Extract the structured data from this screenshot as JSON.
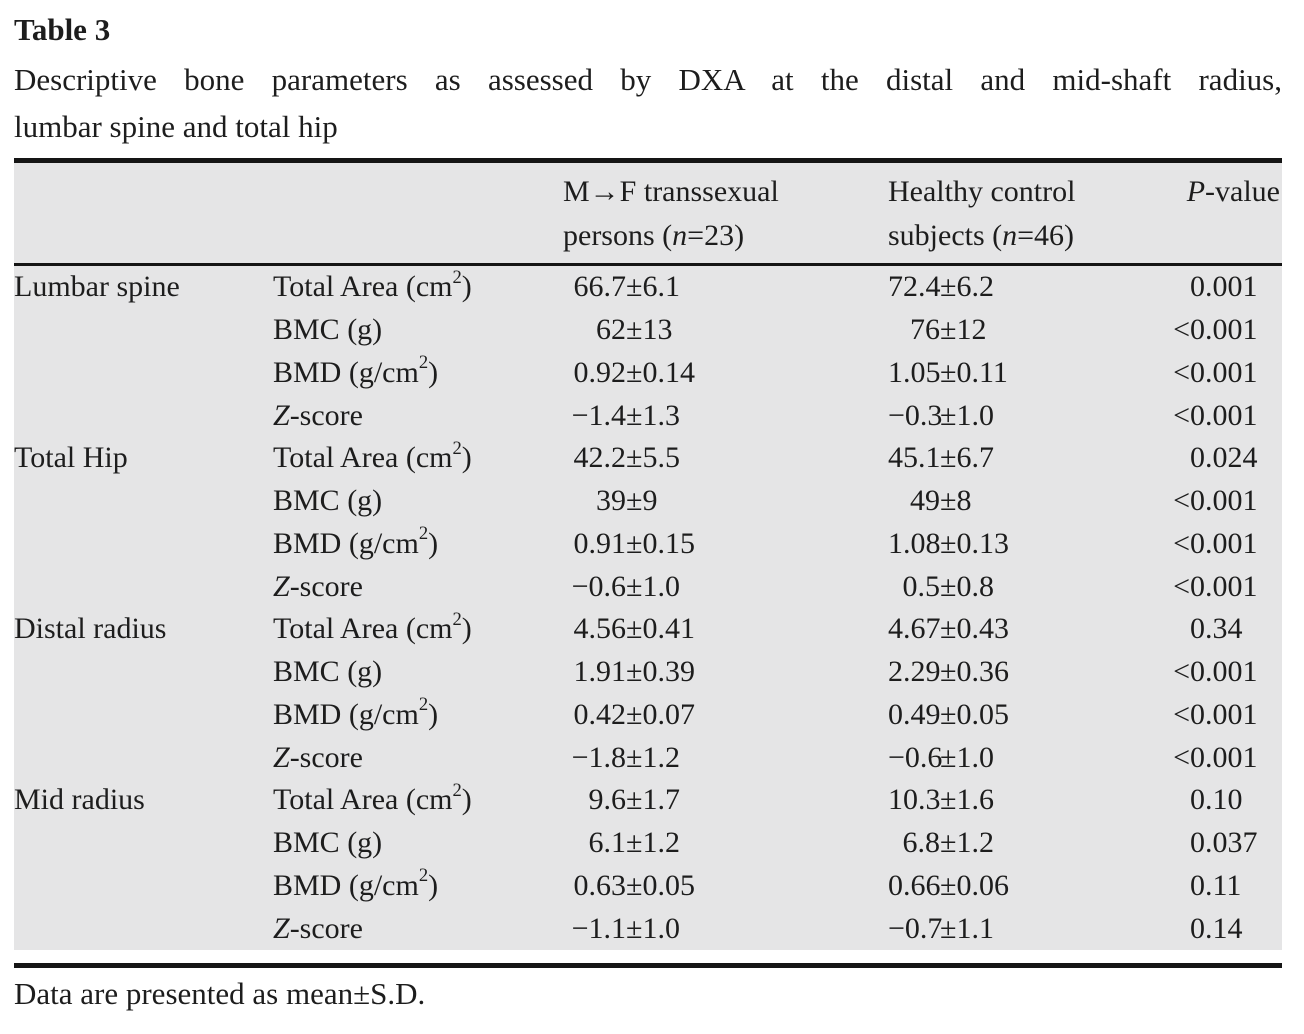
{
  "title": "Table 3",
  "caption_lines": [
    "Descriptive bone parameters as assessed by DXA at the distal and mid-shaft radius,",
    "lumbar spine and total hip"
  ],
  "footnote": "Data are presented as mean±S.D.",
  "colors": {
    "table_background": "#e5e5e6",
    "rule": "#151515",
    "text": "#1d1d1d"
  },
  "header": {
    "col3": {
      "line1": "M→F transsexual",
      "line2": [
        {
          "t": "persons ("
        },
        {
          "t": "n",
          "s": "i"
        },
        {
          "t": "=23)"
        }
      ]
    },
    "col4": {
      "line1": "Healthy control",
      "line2": [
        {
          "t": "subjects ("
        },
        {
          "t": "n",
          "s": "i"
        },
        {
          "t": "=46)"
        }
      ]
    },
    "col5": [
      {
        "t": "P",
        "s": "i"
      },
      {
        "t": "-value"
      }
    ]
  },
  "rows": [
    {
      "group": "Lumbar spine",
      "param": [
        {
          "t": "Total Area (cm"
        },
        {
          "t": "2",
          "s": "sup"
        },
        {
          "t": ")"
        }
      ],
      "v1": {
        "m": "66.7",
        "sd": "6.1"
      },
      "v2": {
        "m": "72.4",
        "sd": "6.2"
      },
      "p": {
        "pre": "",
        "val": "0.001"
      }
    },
    {
      "group": "",
      "param": [
        {
          "t": "BMC (g)"
        }
      ],
      "v1": {
        "m": "62",
        "sd": "13"
      },
      "v2": {
        "m": "76",
        "sd": "12"
      },
      "p": {
        "pre": "<",
        "val": "0.001"
      }
    },
    {
      "group": "",
      "param": [
        {
          "t": "BMD (g/cm"
        },
        {
          "t": "2",
          "s": "sup"
        },
        {
          "t": ")"
        }
      ],
      "v1": {
        "m": "0.92",
        "sd": "0.14"
      },
      "v2": {
        "m": "1.05",
        "sd": "0.11"
      },
      "p": {
        "pre": "<",
        "val": "0.001"
      }
    },
    {
      "group": "",
      "param": [
        {
          "t": "Z",
          "s": "i"
        },
        {
          "t": "-score"
        }
      ],
      "v1": {
        "m": "−1.4",
        "sd": "1.3"
      },
      "v2": {
        "m": "−0.3",
        "sd": "1.0"
      },
      "p": {
        "pre": "<",
        "val": "0.001"
      }
    },
    {
      "group": "Total Hip",
      "param": [
        {
          "t": "Total Area (cm"
        },
        {
          "t": "2",
          "s": "sup"
        },
        {
          "t": ")"
        }
      ],
      "v1": {
        "m": "42.2",
        "sd": "5.5"
      },
      "v2": {
        "m": "45.1",
        "sd": "6.7"
      },
      "p": {
        "pre": "",
        "val": "0.024"
      }
    },
    {
      "group": "",
      "param": [
        {
          "t": "BMC (g)"
        }
      ],
      "v1": {
        "m": "39",
        "sd": "9"
      },
      "v2": {
        "m": "49",
        "sd": "8"
      },
      "p": {
        "pre": "<",
        "val": "0.001"
      }
    },
    {
      "group": "",
      "param": [
        {
          "t": "BMD (g/cm"
        },
        {
          "t": "2",
          "s": "sup"
        },
        {
          "t": ")"
        }
      ],
      "v1": {
        "m": "0.91",
        "sd": "0.15"
      },
      "v2": {
        "m": "1.08",
        "sd": "0.13"
      },
      "p": {
        "pre": "<",
        "val": "0.001"
      }
    },
    {
      "group": "",
      "param": [
        {
          "t": "Z",
          "s": "i"
        },
        {
          "t": "-score"
        }
      ],
      "v1": {
        "m": "−0.6",
        "sd": "1.0"
      },
      "v2": {
        "m": "0.5",
        "sd": "0.8"
      },
      "p": {
        "pre": "<",
        "val": "0.001"
      }
    },
    {
      "group": "Distal radius",
      "param": [
        {
          "t": "Total Area (cm"
        },
        {
          "t": "2",
          "s": "sup"
        },
        {
          "t": ")"
        }
      ],
      "v1": {
        "m": "4.56",
        "sd": "0.41"
      },
      "v2": {
        "m": "4.67",
        "sd": "0.43"
      },
      "p": {
        "pre": "",
        "val": "0.34"
      }
    },
    {
      "group": "",
      "param": [
        {
          "t": "BMC (g)"
        }
      ],
      "v1": {
        "m": "1.91",
        "sd": "0.39"
      },
      "v2": {
        "m": "2.29",
        "sd": "0.36"
      },
      "p": {
        "pre": "<",
        "val": "0.001"
      }
    },
    {
      "group": "",
      "param": [
        {
          "t": "BMD (g/cm"
        },
        {
          "t": "2",
          "s": "sup"
        },
        {
          "t": ")"
        }
      ],
      "v1": {
        "m": "0.42",
        "sd": "0.07"
      },
      "v2": {
        "m": "0.49",
        "sd": "0.05"
      },
      "p": {
        "pre": "<",
        "val": "0.001"
      }
    },
    {
      "group": "",
      "param": [
        {
          "t": "Z",
          "s": "i"
        },
        {
          "t": "-score"
        }
      ],
      "v1": {
        "m": "−1.8",
        "sd": "1.2"
      },
      "v2": {
        "m": "−0.6",
        "sd": "1.0"
      },
      "p": {
        "pre": "<",
        "val": "0.001"
      }
    },
    {
      "group": "Mid radius",
      "param": [
        {
          "t": "Total Area (cm"
        },
        {
          "t": "2",
          "s": "sup"
        },
        {
          "t": ")"
        }
      ],
      "v1": {
        "m": "9.6",
        "sd": "1.7"
      },
      "v2": {
        "m": "10.3",
        "sd": "1.6"
      },
      "p": {
        "pre": "",
        "val": "0.10"
      }
    },
    {
      "group": "",
      "param": [
        {
          "t": "BMC (g)"
        }
      ],
      "v1": {
        "m": "6.1",
        "sd": "1.2"
      },
      "v2": {
        "m": "6.8",
        "sd": "1.2"
      },
      "p": {
        "pre": "",
        "val": "0.037"
      }
    },
    {
      "group": "",
      "param": [
        {
          "t": "BMD (g/cm"
        },
        {
          "t": "2",
          "s": "sup"
        },
        {
          "t": ")"
        }
      ],
      "v1": {
        "m": "0.63",
        "sd": "0.05"
      },
      "v2": {
        "m": "0.66",
        "sd": "0.06"
      },
      "p": {
        "pre": "",
        "val": "0.11"
      }
    },
    {
      "group": "",
      "param": [
        {
          "t": "Z",
          "s": "i"
        },
        {
          "t": "-score"
        }
      ],
      "v1": {
        "m": "−1.1",
        "sd": "1.0"
      },
      "v2": {
        "m": "−0.7",
        "sd": "1.1"
      },
      "p": {
        "pre": "",
        "val": "0.14"
      }
    }
  ]
}
